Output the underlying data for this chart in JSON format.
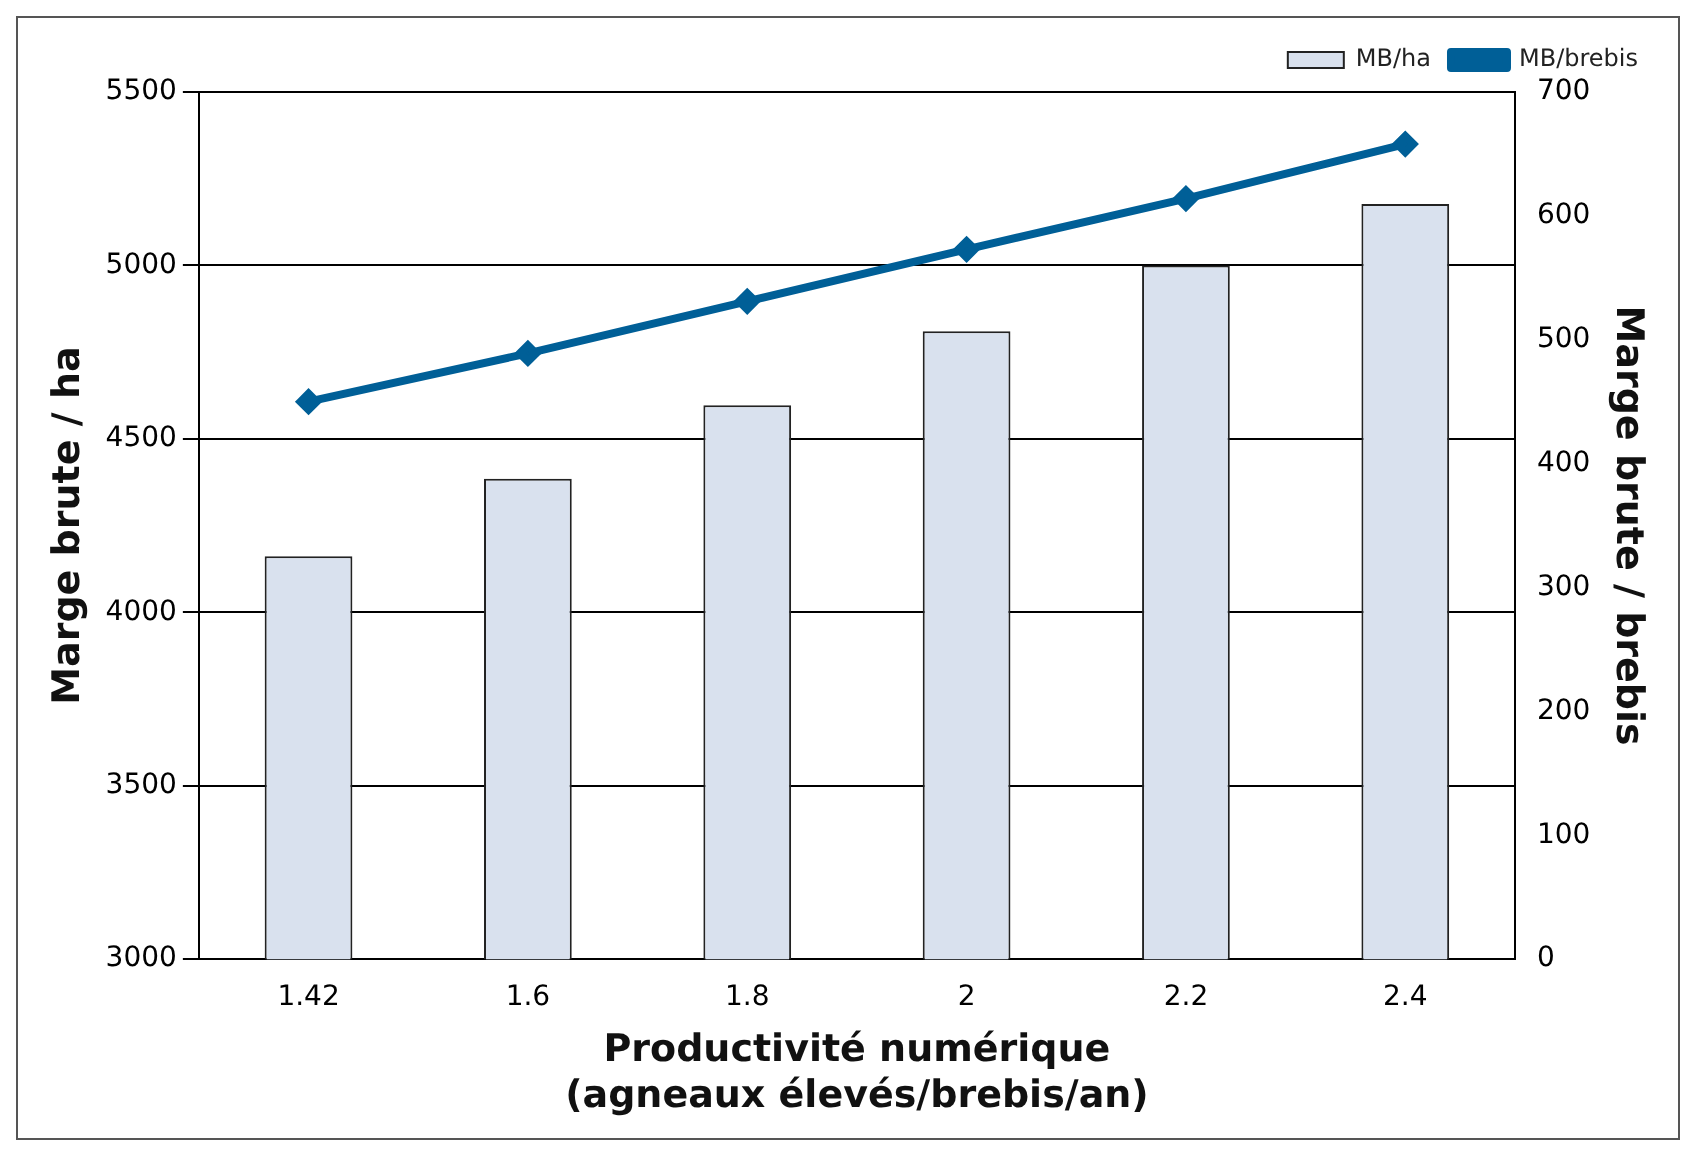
{
  "chart_data": {
    "type": "bar",
    "xlabel": "Productivité numérique\n(agneaux élevés/brebis/an)",
    "ylabel": "Marge brute / ha",
    "y2label": "Marge brute / brebis",
    "categories": [
      "1.42",
      "1.6",
      "1.8",
      "2",
      "2.2",
      "2.4"
    ],
    "series": [
      {
        "name": "MB/ha",
        "color": "#d9e1ee",
        "values": [
          4162,
          4385,
          4597,
          4810,
          5000,
          5177
        ]
      },
      {
        "name": "MB/brebis",
        "type": "line",
        "axis": "y2",
        "color": "#005f97",
        "values": [
          450,
          489,
          531,
          573,
          614,
          658
        ]
      }
    ],
    "ylim": [
      3000,
      5500
    ],
    "yticks": [
      3000,
      3500,
      4000,
      4500,
      5000,
      5500
    ],
    "y2lim": [
      0,
      700
    ],
    "y2ticks": [
      0,
      100,
      200,
      300,
      400,
      500,
      600,
      700
    ],
    "grid": "y",
    "legend": "top right",
    "marker": "diamond"
  }
}
